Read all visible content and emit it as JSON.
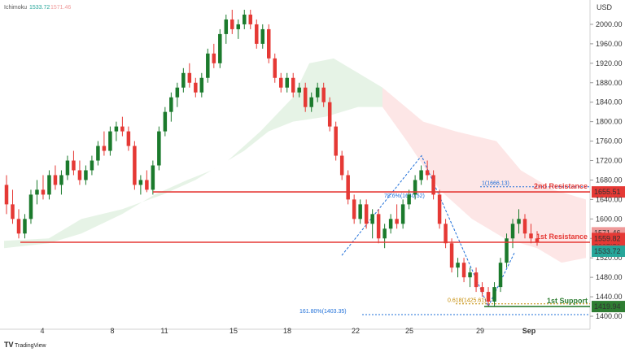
{
  "header": {
    "indicator_label": "Ichimoku",
    "value_a": "1533.72",
    "value_b": "1571.46",
    "color_a": "#26a69a",
    "color_b": "#ef9a9a"
  },
  "currency": "USD",
  "watermark": "TradingView",
  "colors": {
    "up": "#1b7a2c",
    "down": "#e53935",
    "cloud_green": "#e3f2e3",
    "cloud_red": "#fde3e3",
    "resistance": "#e53935",
    "support": "#2e7d32",
    "fib": "#1e6fd9"
  },
  "chart_data": {
    "type": "candlestick",
    "y_axis": {
      "min": 1390,
      "max": 2040,
      "ticks": [
        1400,
        1440,
        1480,
        1520,
        1560,
        1600,
        1640,
        1680,
        1720,
        1760,
        1800,
        1840,
        1880,
        1920,
        1960,
        2000
      ]
    },
    "x_ticks": [
      "4",
      "8",
      "11",
      "15",
      "18",
      "22",
      "25",
      "29",
      "Sep"
    ],
    "levels": [
      {
        "name": "2nd Resistance",
        "label": "2nd Resistance",
        "value": "1655.51",
        "color": "#e53935",
        "y": 1655.51
      },
      {
        "name": "1st Resistance",
        "label": "1st Resistance",
        "value": "1552.10",
        "color": "#e53935",
        "y": 1552.1
      },
      {
        "name": "1st Support",
        "label": "1st Support",
        "value": "1419.94",
        "color": "#2e7d32",
        "y": 1419.94
      }
    ],
    "price_tags": [
      {
        "value": "1571.46",
        "y": 1571.46,
        "color": "#ef9a9a"
      },
      {
        "value": "1559.82",
        "y": 1559.82,
        "color": "#e53935"
      },
      {
        "value": "1533.72",
        "y": 1533.72,
        "color": "#26a69a"
      }
    ],
    "fib_labels": [
      {
        "text": "1(1666.13)",
        "y": 1666.13,
        "color": "#1e6fd9"
      },
      {
        "text": "78.6%(1640.52)",
        "y": 1640.52,
        "color": "#1e6fd9"
      },
      {
        "text": "0.618(1425.61)",
        "y": 1425.61,
        "color": "#c48a00"
      },
      {
        "text": "161.80%(1403.35)",
        "y": 1403.35,
        "color": "#1e6fd9"
      }
    ],
    "candles": [
      [
        1670,
        1690,
        1610,
        1630
      ],
      [
        1630,
        1660,
        1590,
        1600
      ],
      [
        1600,
        1620,
        1560,
        1570
      ],
      [
        1570,
        1610,
        1560,
        1600
      ],
      [
        1600,
        1660,
        1590,
        1650
      ],
      [
        1650,
        1680,
        1630,
        1660
      ],
      [
        1660,
        1690,
        1640,
        1650
      ],
      [
        1650,
        1700,
        1640,
        1690
      ],
      [
        1690,
        1710,
        1660,
        1670
      ],
      [
        1670,
        1700,
        1650,
        1690
      ],
      [
        1690,
        1730,
        1680,
        1720
      ],
      [
        1720,
        1740,
        1690,
        1700
      ],
      [
        1700,
        1720,
        1670,
        1680
      ],
      [
        1680,
        1710,
        1670,
        1700
      ],
      [
        1700,
        1730,
        1690,
        1720
      ],
      [
        1720,
        1760,
        1710,
        1750
      ],
      [
        1750,
        1780,
        1730,
        1740
      ],
      [
        1740,
        1790,
        1730,
        1780
      ],
      [
        1780,
        1800,
        1760,
        1790
      ],
      [
        1790,
        1810,
        1770,
        1780
      ],
      [
        1780,
        1790,
        1740,
        1750
      ],
      [
        1750,
        1760,
        1660,
        1670
      ],
      [
        1670,
        1690,
        1650,
        1680
      ],
      [
        1680,
        1700,
        1655,
        1660
      ],
      [
        1660,
        1720,
        1650,
        1710
      ],
      [
        1710,
        1790,
        1700,
        1780
      ],
      [
        1780,
        1830,
        1770,
        1820
      ],
      [
        1820,
        1860,
        1800,
        1850
      ],
      [
        1850,
        1880,
        1830,
        1870
      ],
      [
        1870,
        1910,
        1860,
        1900
      ],
      [
        1900,
        1920,
        1870,
        1880
      ],
      [
        1880,
        1890,
        1850,
        1860
      ],
      [
        1860,
        1900,
        1850,
        1890
      ],
      [
        1890,
        1950,
        1880,
        1940
      ],
      [
        1940,
        1960,
        1910,
        1920
      ],
      [
        1920,
        1990,
        1910,
        1980
      ],
      [
        1980,
        2020,
        1960,
        2010
      ],
      [
        2010,
        2030,
        1980,
        1990
      ],
      [
        1990,
        2010,
        1970,
        2000
      ],
      [
        2000,
        2030,
        1990,
        2020
      ],
      [
        2020,
        2030,
        1990,
        2000
      ],
      [
        2000,
        2010,
        1950,
        1960
      ],
      [
        1960,
        2000,
        1950,
        1990
      ],
      [
        1990,
        2000,
        1920,
        1930
      ],
      [
        1930,
        1940,
        1880,
        1890
      ],
      [
        1890,
        1900,
        1860,
        1870
      ],
      [
        1870,
        1900,
        1860,
        1890
      ],
      [
        1890,
        1900,
        1850,
        1860
      ],
      [
        1860,
        1880,
        1850,
        1870
      ],
      [
        1870,
        1880,
        1820,
        1830
      ],
      [
        1830,
        1860,
        1820,
        1850
      ],
      [
        1850,
        1880,
        1840,
        1870
      ],
      [
        1870,
        1880,
        1830,
        1840
      ],
      [
        1840,
        1850,
        1780,
        1790
      ],
      [
        1790,
        1800,
        1720,
        1730
      ],
      [
        1730,
        1740,
        1680,
        1690
      ],
      [
        1690,
        1700,
        1630,
        1640
      ],
      [
        1640,
        1650,
        1590,
        1600
      ],
      [
        1600,
        1640,
        1590,
        1630
      ],
      [
        1630,
        1640,
        1580,
        1590
      ],
      [
        1590,
        1620,
        1560,
        1610
      ],
      [
        1610,
        1620,
        1550,
        1560
      ],
      [
        1560,
        1590,
        1540,
        1580
      ],
      [
        1580,
        1610,
        1570,
        1600
      ],
      [
        1600,
        1630,
        1580,
        1590
      ],
      [
        1590,
        1640,
        1580,
        1630
      ],
      [
        1630,
        1660,
        1620,
        1650
      ],
      [
        1650,
        1690,
        1640,
        1680
      ],
      [
        1680,
        1710,
        1670,
        1700
      ],
      [
        1700,
        1720,
        1680,
        1690
      ],
      [
        1690,
        1700,
        1640,
        1650
      ],
      [
        1650,
        1660,
        1580,
        1590
      ],
      [
        1590,
        1600,
        1540,
        1550
      ],
      [
        1550,
        1560,
        1490,
        1500
      ],
      [
        1500,
        1520,
        1480,
        1510
      ],
      [
        1510,
        1520,
        1470,
        1480
      ],
      [
        1480,
        1500,
        1460,
        1490
      ],
      [
        1490,
        1500,
        1450,
        1460
      ],
      [
        1460,
        1470,
        1440,
        1450
      ],
      [
        1450,
        1460,
        1420,
        1430
      ],
      [
        1430,
        1470,
        1420,
        1460
      ],
      [
        1460,
        1520,
        1450,
        1510
      ],
      [
        1510,
        1570,
        1500,
        1560
      ],
      [
        1560,
        1600,
        1540,
        1590
      ],
      [
        1590,
        1620,
        1570,
        1600
      ],
      [
        1600,
        1610,
        1560,
        1570
      ],
      [
        1570,
        1590,
        1550,
        1560
      ],
      [
        1560,
        1575,
        1545,
        1552
      ]
    ]
  }
}
